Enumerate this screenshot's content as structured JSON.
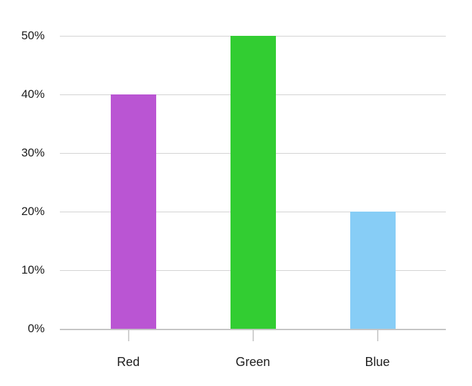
{
  "chart_data": {
    "type": "bar",
    "categories": [
      "Red",
      "Green",
      "Blue"
    ],
    "values": [
      40,
      50,
      20
    ],
    "bar_colors": [
      "#ba55d3",
      "#32cd32",
      "#87cdf6"
    ],
    "ytick_values": [
      0,
      10,
      20,
      30,
      40,
      50
    ],
    "ytick_labels": [
      "0%",
      "10%",
      "20%",
      "30%",
      "40%",
      "50%"
    ],
    "ylim": [
      0,
      50
    ],
    "grid": true,
    "legend": false,
    "title": "",
    "xlabel": "",
    "ylabel": "",
    "colors": {
      "background": "#ffffff",
      "gridline": "#d2d2d2",
      "axis_line": "#c4c4c4",
      "tick_mark": "#d0d0d0",
      "text": "#1c1c1c"
    }
  }
}
